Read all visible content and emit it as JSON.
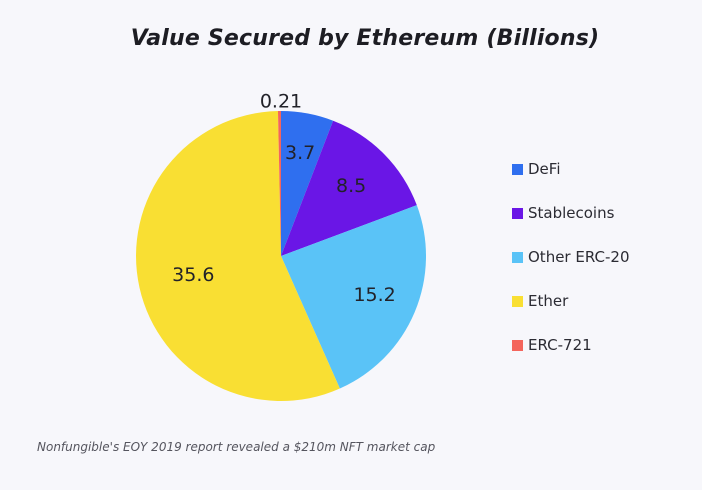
{
  "chart_data": {
    "type": "pie",
    "title": "Value Secured by Ethereum (Billions)",
    "categories": [
      "DeFi",
      "Stablecoins",
      "Other ERC-20",
      "Ether",
      "ERC-721"
    ],
    "values": [
      3.7,
      8.5,
      15.2,
      35.6,
      0.21
    ],
    "value_labels": [
      "3.7",
      "8.5",
      "15.2",
      "35.6",
      "0.21"
    ],
    "colors": [
      "#2f6fef",
      "#6a16e6",
      "#5ac3f7",
      "#f9df33",
      "#f4655c"
    ],
    "legend_position": "right",
    "start_angle_deg": 0,
    "direction": "clockwise"
  },
  "footnote": "Nonfungible's EOY 2019 report revealed a $210m NFT market cap"
}
